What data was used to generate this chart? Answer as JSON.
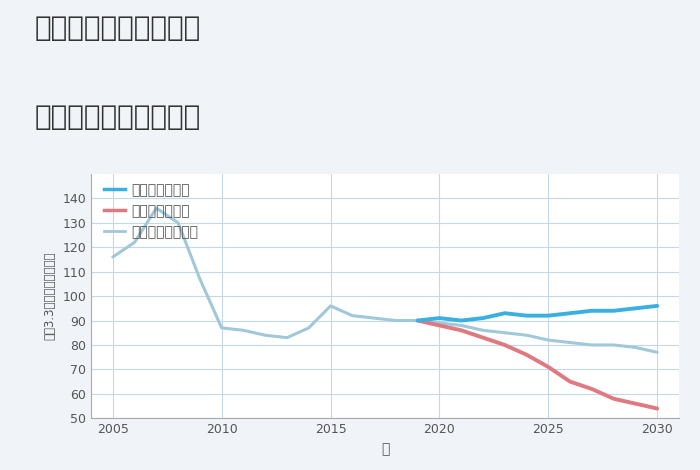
{
  "title_line1": "奈良県生駒市東生駒の",
  "title_line2": "中古戸建ての価格推移",
  "xlabel": "年",
  "ylabel": "坪（3.3㎡）単価（万円）",
  "background_color": "#f0f4f8",
  "plot_bg_color": "#ffffff",
  "grid_color": "#c5d8e8",
  "ylim": [
    50,
    150
  ],
  "yticks": [
    50,
    60,
    70,
    80,
    90,
    100,
    110,
    120,
    130,
    140
  ],
  "xticks": [
    2005,
    2010,
    2015,
    2020,
    2025,
    2030
  ],
  "good_scenario": {
    "label": "グッドシナリオ",
    "color": "#3ab0e0",
    "linewidth": 2.8,
    "x": [
      2019,
      2020,
      2021,
      2022,
      2023,
      2024,
      2025,
      2026,
      2027,
      2028,
      2029,
      2030
    ],
    "y": [
      90,
      91,
      90,
      91,
      93,
      92,
      92,
      93,
      94,
      94,
      95,
      96
    ]
  },
  "bad_scenario": {
    "label": "バッドシナリオ",
    "color": "#e07880",
    "linewidth": 2.8,
    "x": [
      2019,
      2020,
      2021,
      2022,
      2023,
      2024,
      2025,
      2026,
      2027,
      2028,
      2029,
      2030
    ],
    "y": [
      90,
      88,
      86,
      83,
      80,
      76,
      71,
      65,
      62,
      58,
      56,
      54
    ]
  },
  "normal_scenario": {
    "label": "ノーマルシナリオ",
    "color": "#a0c8d8",
    "linewidth": 2.2,
    "hist_x": [
      2005,
      2006,
      2007,
      2008,
      2009,
      2010,
      2011,
      2012,
      2013,
      2014,
      2015,
      2016,
      2017,
      2018,
      2019
    ],
    "hist_y": [
      116,
      122,
      136,
      130,
      107,
      87,
      86,
      84,
      83,
      87,
      96,
      92,
      91,
      90,
      90
    ],
    "fut_x": [
      2019,
      2020,
      2021,
      2022,
      2023,
      2024,
      2025,
      2026,
      2027,
      2028,
      2029,
      2030
    ],
    "fut_y": [
      90,
      89,
      88,
      86,
      85,
      84,
      82,
      81,
      80,
      80,
      79,
      77
    ]
  }
}
